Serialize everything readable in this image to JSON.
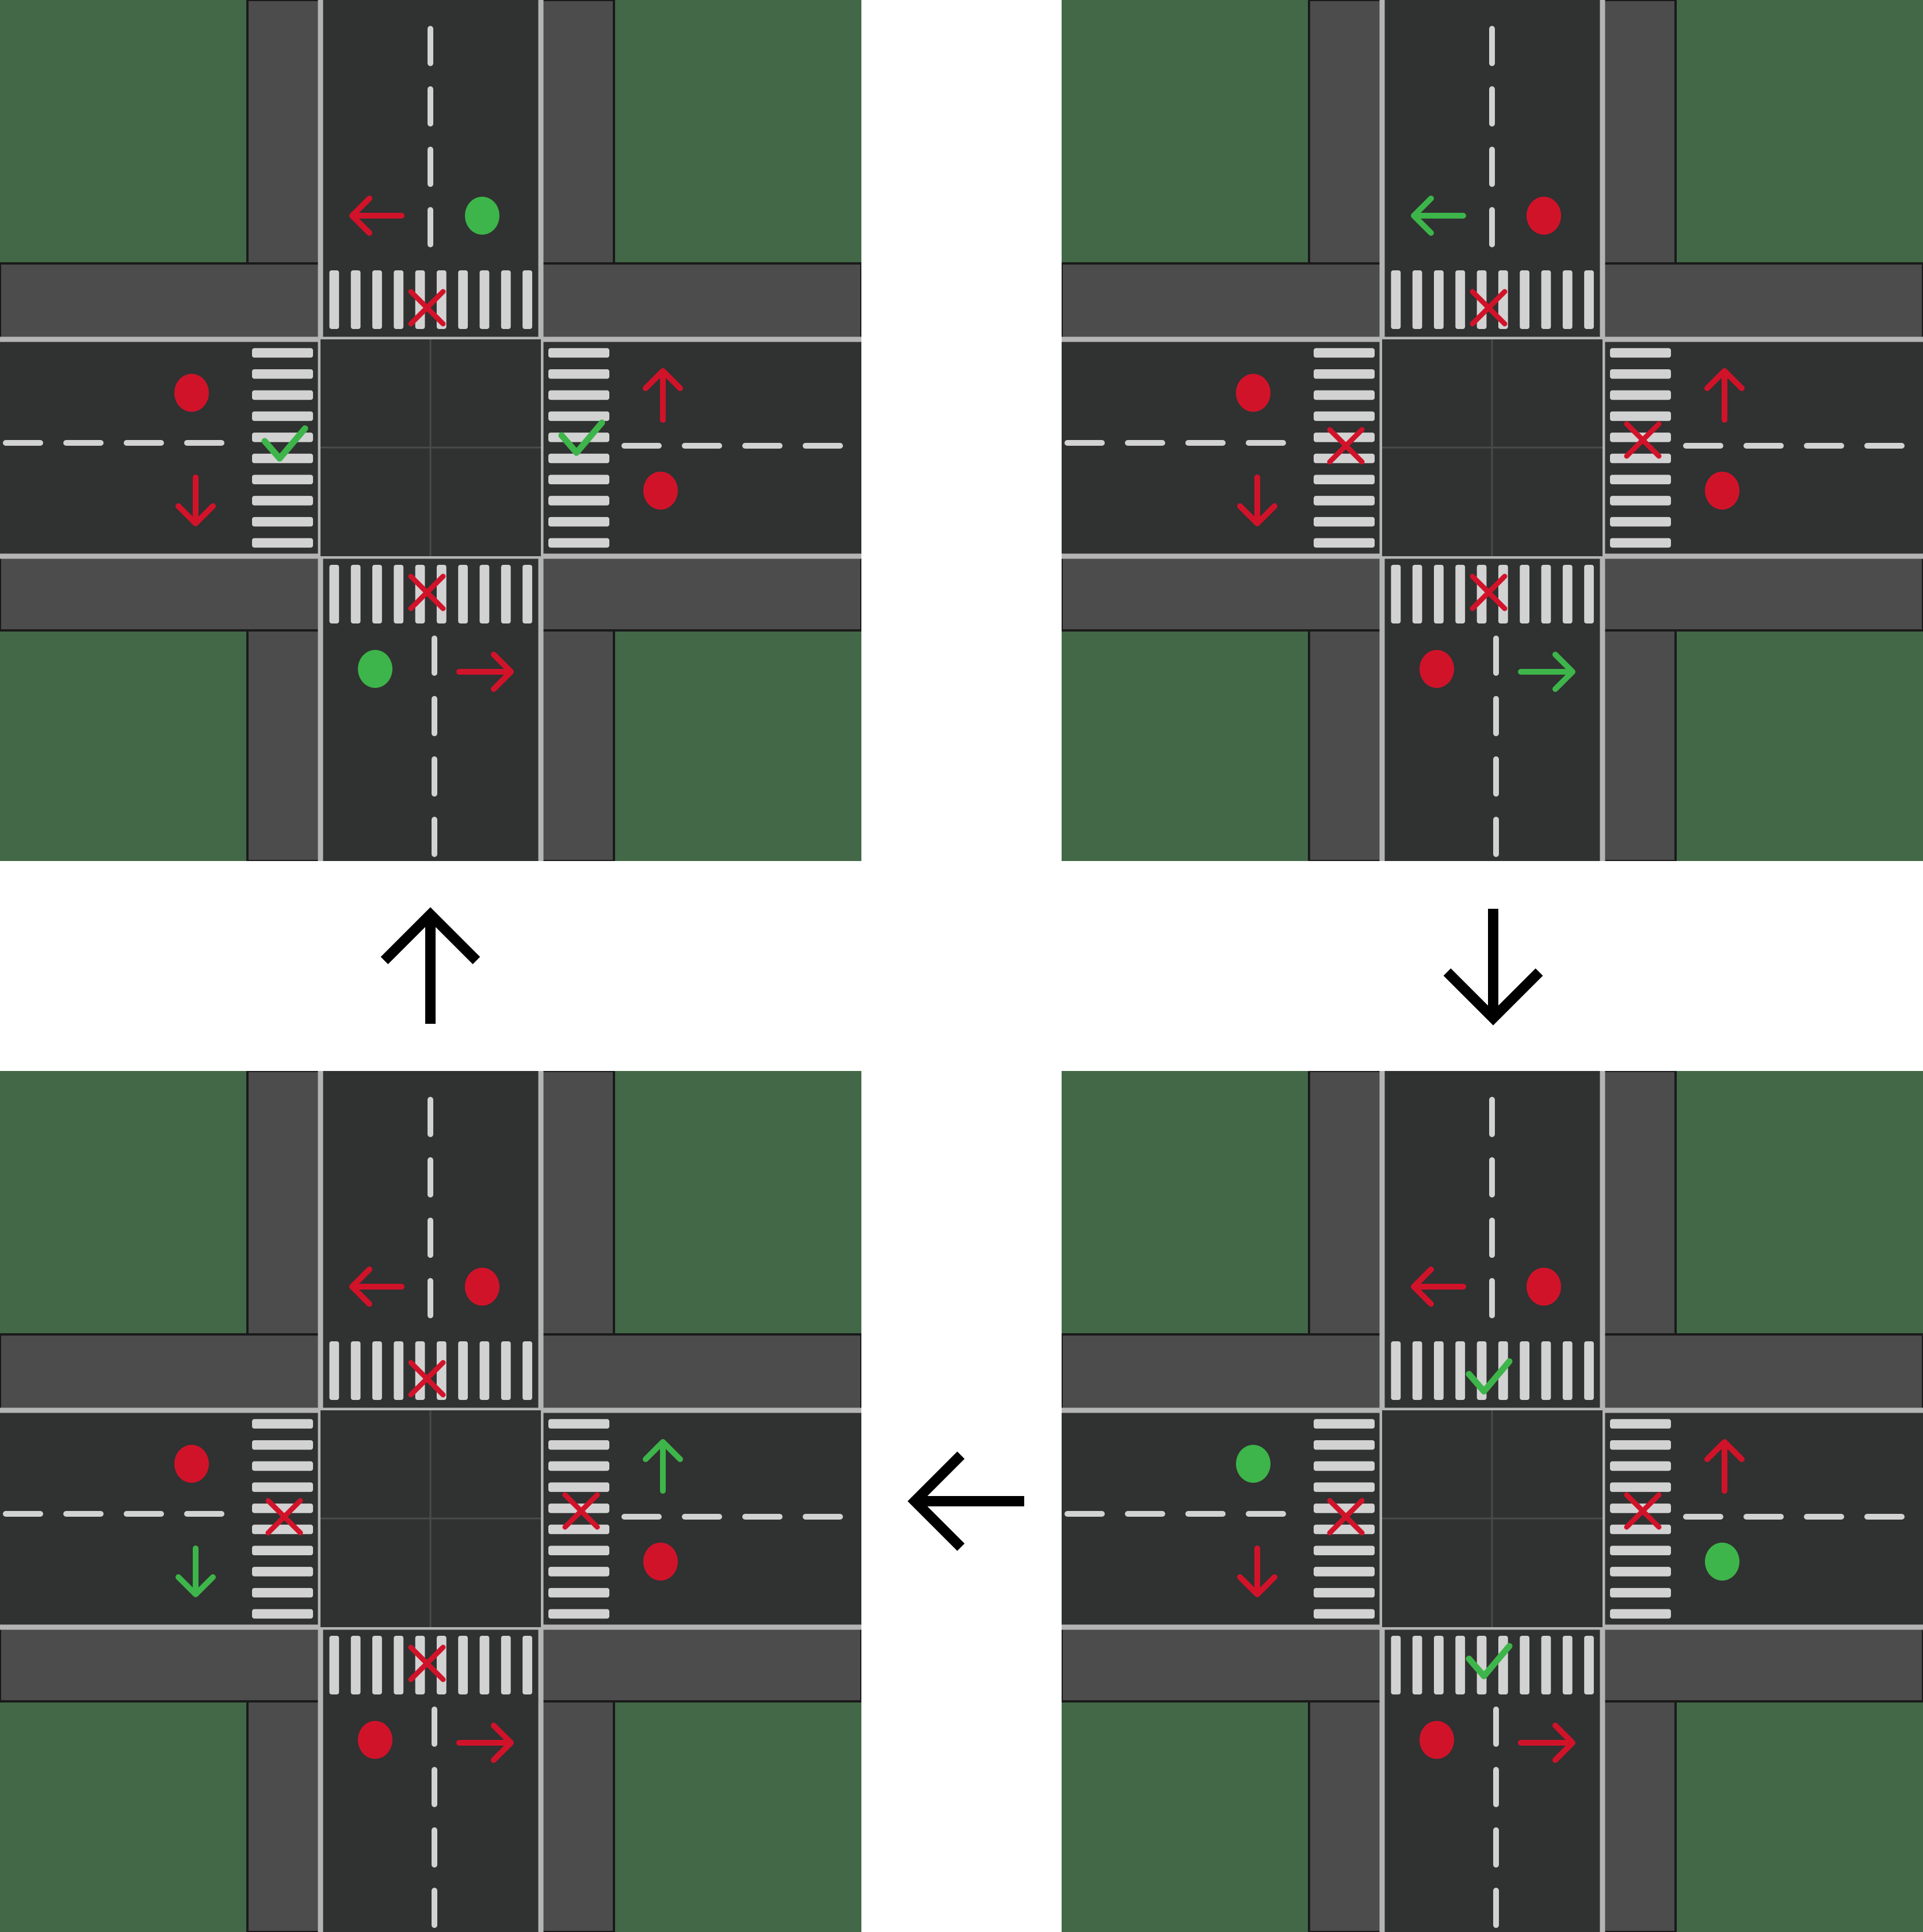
{
  "colors": {
    "background": "#ffffff",
    "grass": "#426847",
    "sidewalk": "#4c4c4c",
    "road": "#303131",
    "curb_line": "#b4b4b4",
    "lane_marking": "#d2d2d2",
    "outline": "#1a1a1a",
    "red": "#d1132a",
    "green": "#3db54a",
    "cycle_arrow": "#000000"
  },
  "phases": [
    {
      "id": "phase-top-left",
      "signals": {
        "north": {
          "light": "green",
          "arrow": "red"
        },
        "south": {
          "light": "green",
          "arrow": "red"
        },
        "west": {
          "light": "red",
          "arrow": "red"
        },
        "east": {
          "light": "red",
          "arrow": "red"
        }
      },
      "crosswalks": {
        "north": "cross",
        "south": "cross",
        "west": "check",
        "east": "check"
      }
    },
    {
      "id": "phase-top-right",
      "signals": {
        "north": {
          "light": "red",
          "arrow": "green"
        },
        "south": {
          "light": "red",
          "arrow": "green"
        },
        "west": {
          "light": "red",
          "arrow": "red"
        },
        "east": {
          "light": "red",
          "arrow": "red"
        }
      },
      "crosswalks": {
        "north": "cross",
        "south": "cross",
        "west": "cross",
        "east": "cross"
      }
    },
    {
      "id": "phase-bottom-right",
      "signals": {
        "north": {
          "light": "red",
          "arrow": "red"
        },
        "south": {
          "light": "red",
          "arrow": "red"
        },
        "west": {
          "light": "green",
          "arrow": "red"
        },
        "east": {
          "light": "green",
          "arrow": "red"
        }
      },
      "crosswalks": {
        "north": "check",
        "south": "check",
        "west": "cross",
        "east": "cross"
      }
    },
    {
      "id": "phase-bottom-left",
      "signals": {
        "north": {
          "light": "red",
          "arrow": "red"
        },
        "south": {
          "light": "red",
          "arrow": "red"
        },
        "west": {
          "light": "red",
          "arrow": "green"
        },
        "east": {
          "light": "red",
          "arrow": "green"
        }
      },
      "crosswalks": {
        "north": "cross",
        "south": "cross",
        "west": "cross",
        "east": "cross"
      }
    }
  ],
  "cycle_arrows": [
    {
      "id": "arrow-tr-to-br",
      "direction": "down"
    },
    {
      "id": "arrow-br-to-bl",
      "direction": "left"
    },
    {
      "id": "arrow-bl-to-tl",
      "direction": "up"
    }
  ]
}
